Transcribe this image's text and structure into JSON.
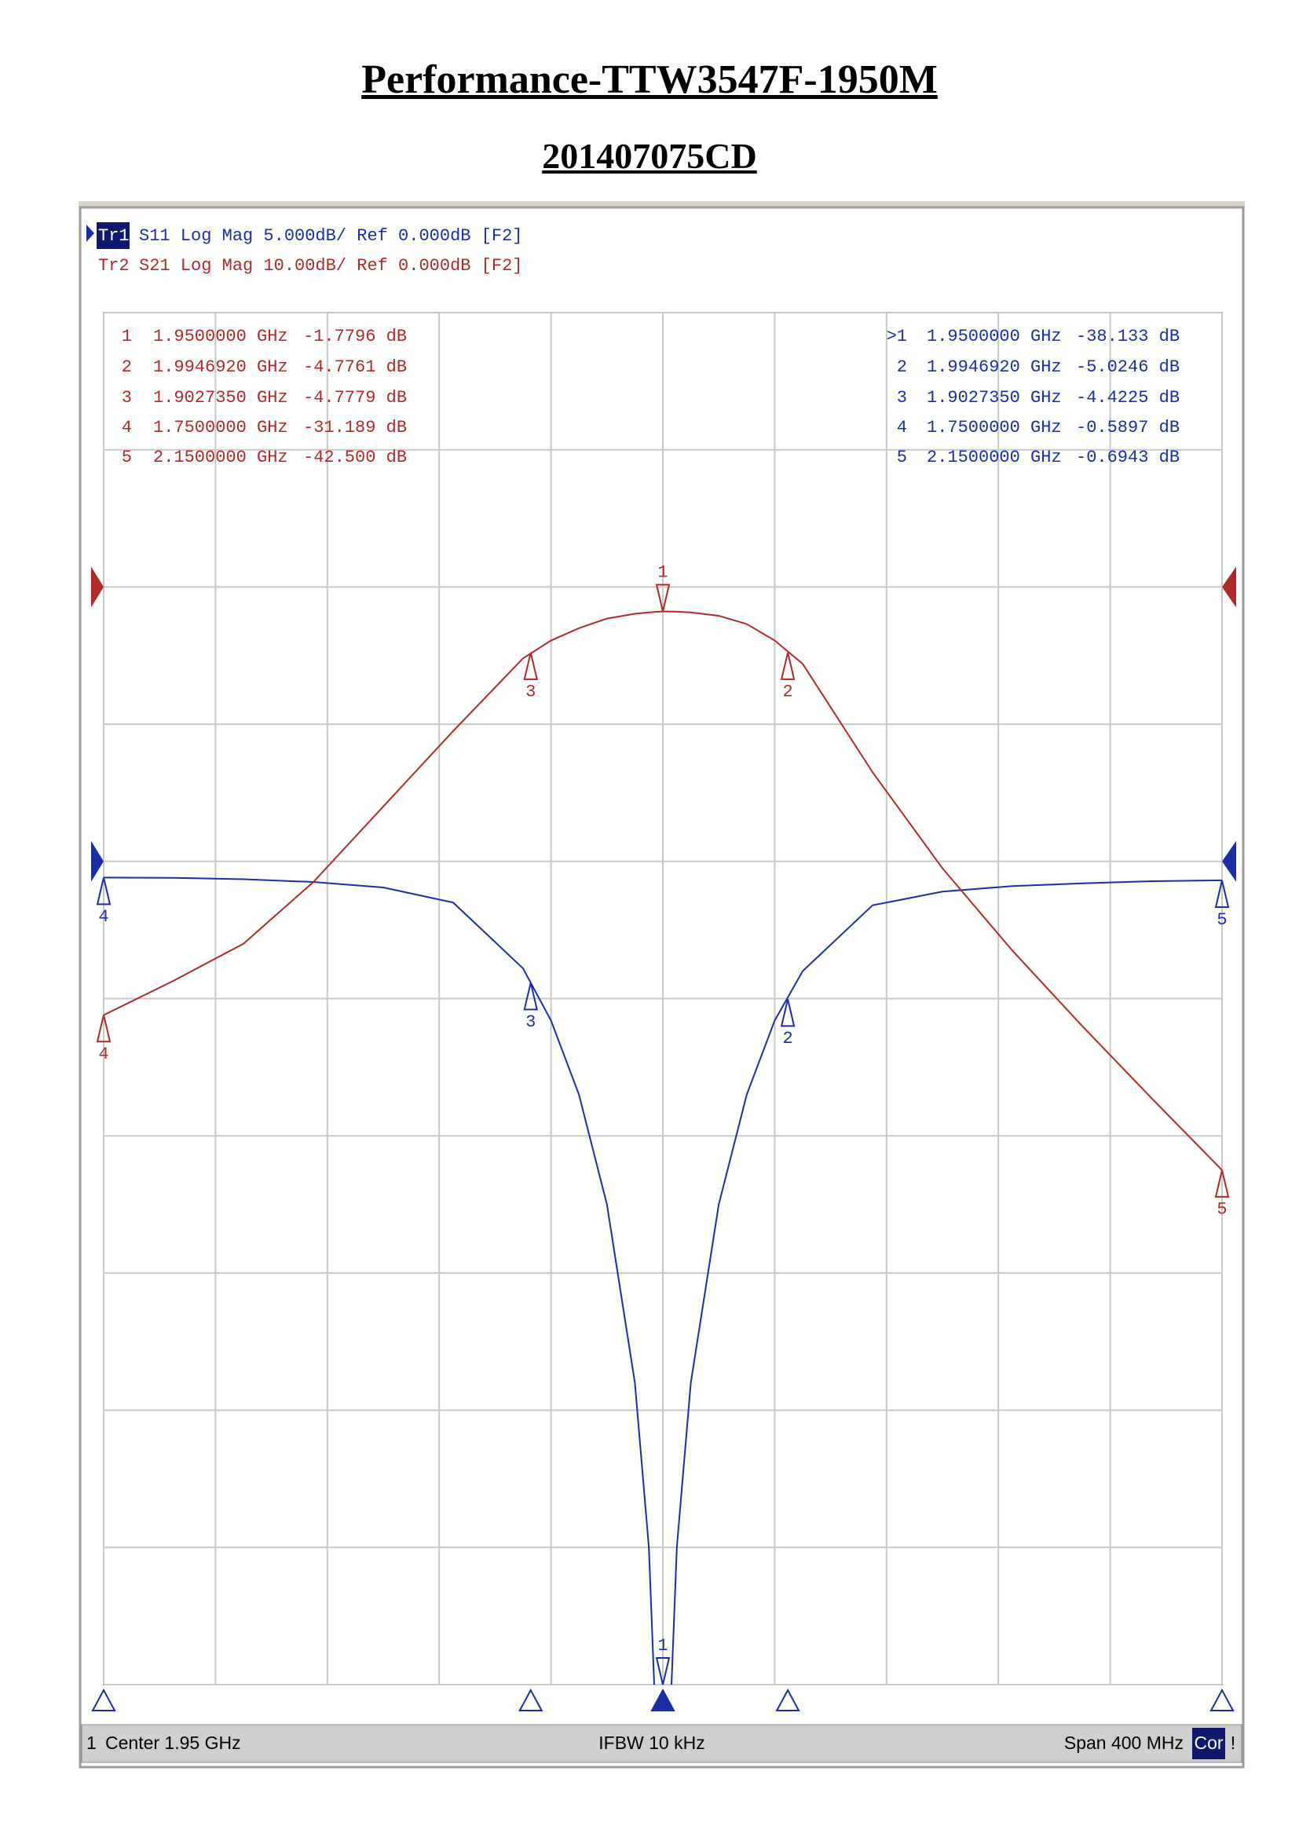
{
  "header": {
    "title": "Performance-TTW3547F-1950M",
    "subtitle": "201407075CD"
  },
  "chart_data": {
    "type": "line",
    "trace_header": [
      {
        "tag": "Tr1",
        "text": "S11 Log Mag 5.000dB/ Ref 0.000dB [F2]"
      },
      {
        "tag": "Tr2",
        "text": "S21 Log Mag 10.00dB/ Ref 0.000dB [F2]"
      }
    ],
    "x": [
      1.75,
      1.775,
      1.8,
      1.825,
      1.85,
      1.875,
      1.9,
      1.91,
      1.92,
      1.93,
      1.94,
      1.945,
      1.95,
      1.955,
      1.96,
      1.97,
      1.98,
      1.99,
      2.0,
      2.025,
      2.05,
      2.075,
      2.1,
      2.125,
      2.15
    ],
    "xlim": [
      1.75,
      2.15
    ],
    "xticks": [
      1.75,
      1.79,
      1.83,
      1.87,
      1.91,
      1.95,
      1.99,
      2.03,
      2.07,
      2.11,
      2.15
    ],
    "ylim": [
      -30,
      20
    ],
    "yticks": [
      -30,
      -25,
      -20,
      -15,
      -10,
      -5,
      0,
      5,
      10,
      15,
      20
    ],
    "y2lim": [
      -80,
      20
    ],
    "y2ticks": [
      -80,
      -70,
      -60,
      -50,
      -40,
      -30,
      -20,
      -10,
      0,
      10,
      20
    ],
    "grid": true,
    "series": [
      {
        "color": "#1c2ea6",
        "ref_level": 0,
        "values": [
          -0.59,
          -0.6,
          -0.65,
          -0.75,
          -0.95,
          -1.5,
          -3.9,
          -5.8,
          -8.5,
          -12.5,
          -19,
          -25,
          -38.1,
          -25,
          -19,
          -12.5,
          -8.5,
          -5.8,
          -4.0,
          -1.6,
          -1.1,
          -0.9,
          -0.8,
          -0.72,
          -0.69
        ],
        "markers": [
          {
            "label": "1",
            "table_label": ">1",
            "active": true,
            "x": 1.95,
            "x_label": "1.9500000 GHz",
            "value": -38.133,
            "value_label": "-38.133 dB"
          },
          {
            "label": "2",
            "x": 1.994692,
            "x_label": "1.9946920 GHz",
            "value": -5.0246,
            "value_label": "-5.0246 dB"
          },
          {
            "label": "3",
            "x": 1.902735,
            "x_label": "1.9027350 GHz",
            "value": -4.4225,
            "value_label": "-4.4225 dB"
          },
          {
            "label": "4",
            "x": 1.75,
            "x_label": "1.7500000 GHz",
            "value": -0.5897,
            "value_label": "-0.5897 dB"
          },
          {
            "label": "5",
            "x": 2.15,
            "x_label": "2.1500000 GHz",
            "value": -0.6943,
            "value_label": "-0.6943 dB"
          }
        ]
      },
      {
        "color": "#b02a2a",
        "axis": "y2",
        "ref_level": 0,
        "values": [
          -31.2,
          -28.7,
          -26,
          -21.5,
          -16,
          -10.5,
          -5.2,
          -3.9,
          -3.0,
          -2.3,
          -1.95,
          -1.85,
          -1.78,
          -1.8,
          -1.85,
          -2.1,
          -2.7,
          -3.9,
          -5.6,
          -13.5,
          -20.5,
          -26.5,
          -32,
          -37.3,
          -42.5
        ],
        "markers": [
          {
            "label": "1",
            "active": true,
            "x": 1.95,
            "x_label": "1.9500000 GHz",
            "value": -1.7796,
            "value_label": "-1.7796 dB"
          },
          {
            "label": "2",
            "x": 1.994692,
            "x_label": "1.9946920 GHz",
            "value": -4.7761,
            "value_label": "-4.7761 dB"
          },
          {
            "label": "3",
            "x": 1.902735,
            "x_label": "1.9027350 GHz",
            "value": -4.7779,
            "value_label": "-4.7779 dB"
          },
          {
            "label": "4",
            "x": 1.75,
            "x_label": "1.7500000 GHz",
            "value": -31.189,
            "value_label": "-31.189 dB"
          },
          {
            "label": "5",
            "x": 2.15,
            "x_label": "2.1500000 GHz",
            "value": -42.5,
            "value_label": "-42.500 dB"
          }
        ]
      }
    ],
    "footer": {
      "channel": "1",
      "center": "Center 1.95 GHz",
      "ifbw": "IFBW 10 kHz",
      "span": "Span 400 MHz",
      "cor": "Cor",
      "alert": "!"
    }
  }
}
